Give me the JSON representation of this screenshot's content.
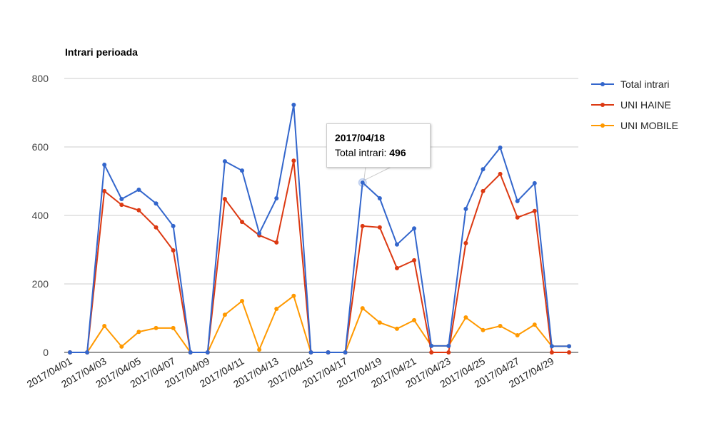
{
  "chart_data": {
    "type": "line",
    "title": "Intrari perioada",
    "xlabel": "",
    "ylabel": "",
    "ylim": [
      0,
      800
    ],
    "yticks": [
      0,
      200,
      400,
      600,
      800
    ],
    "grid": true,
    "legend_position": "right",
    "x": [
      "2017/04/01",
      "2017/04/02",
      "2017/04/03",
      "2017/04/04",
      "2017/04/05",
      "2017/04/06",
      "2017/04/07",
      "2017/04/08",
      "2017/04/09",
      "2017/04/10",
      "2017/04/11",
      "2017/04/12",
      "2017/04/13",
      "2017/04/14",
      "2017/04/15",
      "2017/04/16",
      "2017/04/17",
      "2017/04/18",
      "2017/04/19",
      "2017/04/20",
      "2017/04/21",
      "2017/04/22",
      "2017/04/23",
      "2017/04/24",
      "2017/04/25",
      "2017/04/26",
      "2017/04/27",
      "2017/04/28",
      "2017/04/29",
      "2017/04/30"
    ],
    "xtick_labels": [
      "2017/04/01",
      "2017/04/03",
      "2017/04/05",
      "2017/04/07",
      "2017/04/09",
      "2017/04/11",
      "2017/04/13",
      "2017/04/15",
      "2017/04/17",
      "2017/04/19",
      "2017/04/21",
      "2017/04/23",
      "2017/04/25",
      "2017/04/27",
      "2017/04/29"
    ],
    "series": [
      {
        "name": "Total intrari",
        "color": "#3366cc",
        "values": [
          0,
          0,
          548,
          448,
          475,
          435,
          369,
          0,
          0,
          558,
          531,
          348,
          450,
          723,
          0,
          0,
          0,
          496,
          450,
          315,
          362,
          19,
          19,
          419,
          535,
          598,
          442,
          494,
          18,
          18
        ]
      },
      {
        "name": "UNI HAINE",
        "color": "#dc3912",
        "values": [
          0,
          0,
          471,
          431,
          415,
          365,
          298,
          0,
          0,
          448,
          381,
          342,
          321,
          560,
          0,
          0,
          0,
          369,
          365,
          246,
          269,
          0,
          0,
          319,
          471,
          521,
          394,
          413,
          0,
          0
        ]
      },
      {
        "name": "UNI MOBILE",
        "color": "#ff9900",
        "values": [
          0,
          0,
          77,
          17,
          60,
          71,
          71,
          0,
          0,
          110,
          150,
          8,
          127,
          165,
          0,
          0,
          0,
          129,
          87,
          69,
          94,
          19,
          19,
          102,
          65,
          77,
          50,
          81,
          18,
          18
        ]
      }
    ],
    "tooltip": {
      "date": "2017/04/18",
      "label": "Total intrari: ",
      "value": "496"
    }
  }
}
